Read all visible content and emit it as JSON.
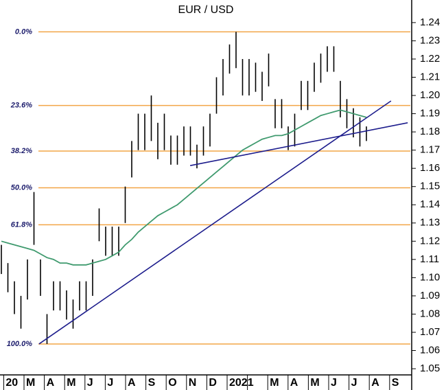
{
  "chart_data": {
    "type": "ohlc",
    "title": "EUR / USD",
    "categories": [
      "20",
      "M",
      "A",
      "M",
      "J",
      "J",
      "A",
      "S",
      "O",
      "N",
      "D",
      "2021",
      null,
      "M",
      "A",
      "M",
      "J",
      "J",
      "A",
      "S"
    ],
    "highs": [
      1.118,
      1.108,
      1.098,
      1.09,
      1.11,
      1.147,
      1.11,
      1.08,
      1.098,
      1.098,
      1.093,
      1.088,
      1.098,
      1.098,
      1.11,
      1.138,
      1.128,
      1.128,
      1.128,
      1.15,
      1.175,
      1.19,
      1.19,
      1.2,
      1.185,
      1.19,
      1.178,
      1.178,
      1.183,
      1.183,
      1.173,
      1.183,
      1.19,
      1.21,
      1.22,
      1.228,
      1.2349,
      1.22,
      1.22,
      1.218,
      1.213,
      1.223,
      1.198,
      1.198,
      1.183,
      1.19,
      1.208,
      1.208,
      1.218,
      1.223,
      1.227,
      1.227,
      1.208,
      1.198,
      1.193,
      1.188,
      1.183
    ],
    "lows": [
      1.102,
      1.092,
      1.08,
      1.072,
      1.088,
      1.118,
      1.09,
      1.0636,
      1.082,
      1.082,
      1.077,
      1.072,
      1.082,
      1.082,
      1.09,
      1.12,
      1.112,
      1.112,
      1.112,
      1.13,
      1.155,
      1.17,
      1.17,
      1.175,
      1.165,
      1.17,
      1.162,
      1.162,
      1.167,
      1.167,
      1.16,
      1.167,
      1.172,
      1.19,
      1.2,
      1.212,
      1.215,
      1.2,
      1.2,
      1.202,
      1.197,
      1.205,
      1.182,
      1.182,
      1.17,
      1.172,
      1.192,
      1.192,
      1.202,
      1.207,
      1.213,
      1.213,
      1.188,
      1.182,
      1.177,
      1.172,
      1.175
    ],
    "bar_color": "#000000",
    "moving_average": {
      "color": "#3f9a6e",
      "values": [
        1.12,
        1.119,
        1.118,
        1.117,
        1.116,
        1.115,
        1.113,
        1.111,
        1.11,
        1.108,
        1.108,
        1.107,
        1.107,
        1.107,
        1.108,
        1.109,
        1.11,
        1.112,
        1.114,
        1.118,
        1.121,
        1.125,
        1.128,
        1.131,
        1.134,
        1.136,
        1.138,
        1.14,
        1.143,
        1.146,
        1.149,
        1.152,
        1.155,
        1.158,
        1.161,
        1.164,
        1.167,
        1.17,
        1.172,
        1.174,
        1.176,
        1.177,
        1.178,
        1.178,
        1.179,
        1.181,
        1.183,
        1.185,
        1.187,
        1.189,
        1.19,
        1.191,
        1.192,
        1.191,
        1.19,
        1.189,
        1.188
      ]
    },
    "trendlines": [
      {
        "color": "#1c1c8c",
        "x": [
          1.74,
          19.07
        ],
        "values": [
          1.0636,
          1.197
        ]
      },
      {
        "color": "#1c1c8c",
        "x": [
          9.18,
          19.89
        ],
        "values": [
          1.1615,
          1.185
        ]
      }
    ],
    "fib_color": "#f2a546",
    "fib_levels": [
      {
        "label": "0.0%",
        "value": 1.2349
      },
      {
        "label": "23.6%",
        "value": 1.1945
      },
      {
        "label": "38.2%",
        "value": 1.1695
      },
      {
        "label": "50.0%",
        "value": 1.1493
      },
      {
        "label": "61.8%",
        "value": 1.129
      },
      {
        "label": "100.0%",
        "value": 1.0636
      }
    ],
    "ylim": [
      1.047,
      1.2524
    ],
    "yticks": [
      1.05,
      1.06,
      1.07,
      1.08,
      1.09,
      {
        "value": 1.1,
        "label": "1.10"
      },
      1.11,
      1.12,
      1.13,
      1.14,
      1.15,
      1.16,
      1.17,
      1.18,
      1.19,
      {
        "value": 1.2,
        "label": "1.20"
      },
      1.21,
      1.22,
      1.23,
      1.24
    ]
  }
}
